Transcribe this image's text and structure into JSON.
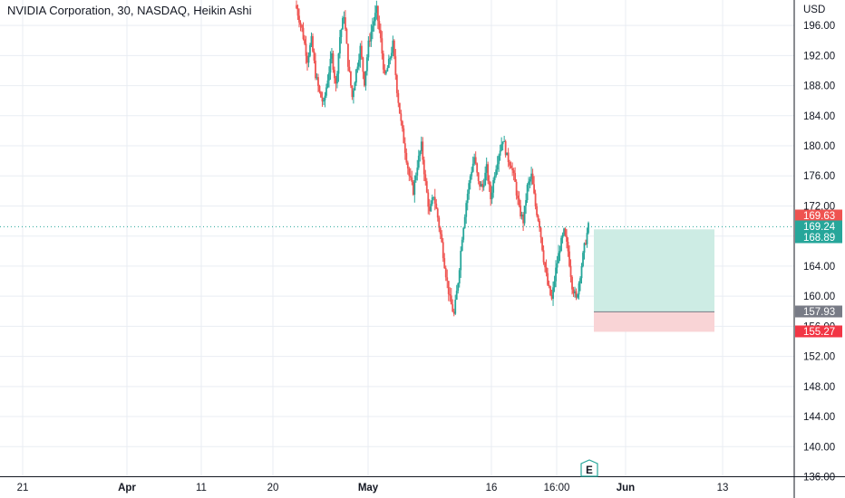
{
  "legend": {
    "title": "NVIDIA Corporation, 30, NASDAQ, Heikin Ashi"
  },
  "colors": {
    "up": "#26a69a",
    "down": "#ef5350",
    "grid": "#e9edf3",
    "current_price": "#26a69a",
    "entry": "#787b86",
    "profit_zone": "#cdece4",
    "loss_zone": "#f9d4d6"
  },
  "earnings_marker": {
    "label": "E",
    "icon": "earnings-flag-icon"
  },
  "chart_data": {
    "type": "candlestick",
    "style": "Heikin Ashi",
    "symbol": "NVIDIA Corporation",
    "interval": "30",
    "exchange": "NASDAQ",
    "currency": "USD",
    "grid": true,
    "ylim": [
      136,
      198
    ],
    "y_ticks": [
      196.0,
      192.0,
      188.0,
      184.0,
      180.0,
      176.0,
      172.0,
      168.0,
      164.0,
      160.0,
      156.0,
      152.0,
      148.0,
      144.0,
      140.0,
      136.0
    ],
    "x_ticks": [
      {
        "label": "21",
        "bold": false
      },
      {
        "label": "Apr",
        "bold": true
      },
      {
        "label": "11",
        "bold": false
      },
      {
        "label": "20",
        "bold": false
      },
      {
        "label": "May",
        "bold": true
      },
      {
        "label": "16",
        "bold": false
      },
      {
        "label": "16:00",
        "bold": false
      },
      {
        "label": "Jun",
        "bold": true
      },
      {
        "label": "13",
        "bold": false
      }
    ],
    "price_labels": [
      {
        "value": "169.63",
        "role": "bid",
        "color": "#ef5350"
      },
      {
        "value": "169.24",
        "role": "last",
        "color": "#26a69a"
      },
      {
        "value": "168.89",
        "role": "ask",
        "color": "#26a69a"
      },
      {
        "value": "157.93",
        "role": "entry",
        "color": "#787b86"
      },
      {
        "value": "155.27",
        "role": "stop",
        "color": "#f23645"
      }
    ],
    "current_price": 169.24,
    "position": {
      "type": "long",
      "target": 168.89,
      "entry": 157.93,
      "stop": 155.27
    },
    "price_path": [
      [
        0,
        198.3
      ],
      [
        4,
        195.5
      ],
      [
        8,
        191.5
      ],
      [
        11,
        194.0
      ],
      [
        14,
        189.5
      ],
      [
        17,
        187.0
      ],
      [
        20,
        185.5
      ],
      [
        23,
        189.0
      ],
      [
        26,
        192.0
      ],
      [
        29,
        188.0
      ],
      [
        32,
        194.5
      ],
      [
        35,
        197.5
      ],
      [
        38,
        191.0
      ],
      [
        41,
        186.5
      ],
      [
        44,
        190.0
      ],
      [
        47,
        193.0
      ],
      [
        50,
        188.5
      ],
      [
        53,
        193.5
      ],
      [
        56,
        196.0
      ],
      [
        59,
        198.0
      ],
      [
        62,
        194.0
      ],
      [
        65,
        189.0
      ],
      [
        68,
        191.0
      ],
      [
        71,
        193.5
      ],
      [
        74,
        187.5
      ],
      [
        77,
        183.0
      ],
      [
        80,
        179.5
      ],
      [
        83,
        176.0
      ],
      [
        86,
        174.0
      ],
      [
        89,
        177.5
      ],
      [
        92,
        180.0
      ],
      [
        95,
        175.0
      ],
      [
        98,
        171.0
      ],
      [
        101,
        173.5
      ],
      [
        104,
        170.5
      ],
      [
        107,
        167.0
      ],
      [
        110,
        163.0
      ],
      [
        113,
        159.5
      ],
      [
        116,
        157.5
      ],
      [
        119,
        162.0
      ],
      [
        122,
        168.0
      ],
      [
        125,
        172.5
      ],
      [
        128,
        176.0
      ],
      [
        131,
        178.5
      ],
      [
        134,
        175.0
      ],
      [
        137,
        174.5
      ],
      [
        140,
        177.0
      ],
      [
        143,
        173.0
      ],
      [
        146,
        176.5
      ],
      [
        149,
        179.0
      ],
      [
        152,
        181.0
      ],
      [
        155,
        178.5
      ],
      [
        158,
        177.5
      ],
      [
        161,
        175.0
      ],
      [
        164,
        171.5
      ],
      [
        167,
        170.0
      ],
      [
        170,
        174.5
      ],
      [
        173,
        176.0
      ],
      [
        176,
        172.0
      ],
      [
        179,
        169.5
      ],
      [
        182,
        165.0
      ],
      [
        185,
        161.5
      ],
      [
        188,
        159.5
      ],
      [
        191,
        163.5
      ],
      [
        194,
        166.5
      ],
      [
        197,
        168.5
      ],
      [
        200,
        166.0
      ],
      [
        203,
        161.5
      ],
      [
        206,
        159.5
      ],
      [
        209,
        163.0
      ],
      [
        212,
        166.5
      ],
      [
        215,
        169.24
      ]
    ]
  }
}
